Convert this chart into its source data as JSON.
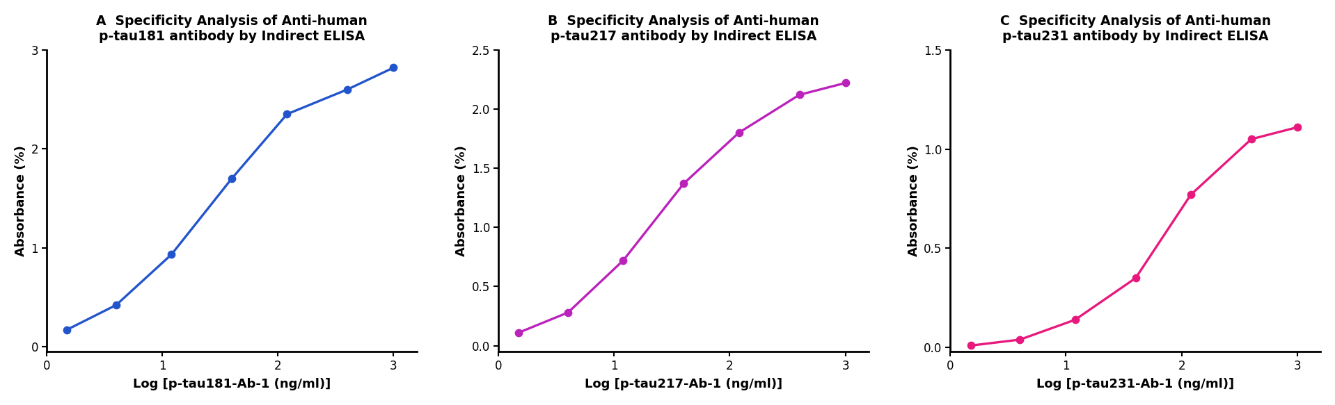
{
  "panels": [
    {
      "title": "A  Specificity Analysis of Anti-human\np-tau181 antibody by Indirect ELISA",
      "xlabel": "Log [p-tau181-Ab-1 (ng/ml)]",
      "ylabel": "Absorbance (%)",
      "color": "#2255cc",
      "x_data": [
        0.176,
        0.602,
        1.079,
        1.602,
        2.079,
        2.602,
        3.0
      ],
      "y_data": [
        0.17,
        0.42,
        0.93,
        1.7,
        2.35,
        2.6,
        2.82
      ],
      "xlim": [
        0,
        3.2
      ],
      "ylim": [
        -0.05,
        3.0
      ],
      "yticks": [
        0,
        1,
        2,
        3
      ],
      "ytick_labels": [
        "0",
        "1",
        "2",
        "3"
      ],
      "xticks": [
        0,
        1,
        2,
        3
      ]
    },
    {
      "title": "B  Specificity Analysis of Anti-human\np-tau217 antibody by Indirect ELISA",
      "xlabel": "Log [p-tau217-Ab-1 (ng/ml)]",
      "ylabel": "Absorbance (%)",
      "color": "#bb22bb",
      "x_data": [
        0.176,
        0.602,
        1.079,
        1.602,
        2.079,
        2.602,
        3.0
      ],
      "y_data": [
        0.11,
        0.28,
        0.72,
        1.37,
        1.8,
        2.12,
        2.22
      ],
      "xlim": [
        0,
        3.2
      ],
      "ylim": [
        -0.05,
        2.5
      ],
      "yticks": [
        0.0,
        0.5,
        1.0,
        1.5,
        2.0,
        2.5
      ],
      "ytick_labels": [
        "0.0",
        "0.5",
        "1.0",
        "1.5",
        "2.0",
        "2.5"
      ],
      "xticks": [
        0,
        1,
        2,
        3
      ]
    },
    {
      "title": "C  Specificity Analysis of Anti-human\np-tau231 antibody by Indirect ELISA",
      "xlabel": "Log [p-tau231-Ab-1 (ng/ml)]",
      "ylabel": "Absorbance (%)",
      "color": "#e8197d",
      "x_data": [
        0.176,
        0.602,
        1.079,
        1.602,
        2.079,
        2.602,
        3.0
      ],
      "y_data": [
        0.01,
        0.04,
        0.14,
        0.35,
        0.77,
        1.05,
        1.11
      ],
      "xlim": [
        0,
        3.2
      ],
      "ylim": [
        -0.02,
        1.5
      ],
      "yticks": [
        0.0,
        0.5,
        1.0,
        1.5
      ],
      "ytick_labels": [
        "0.0",
        "0.5",
        "1.0",
        "1.5"
      ],
      "xticks": [
        0,
        1,
        2,
        3
      ]
    }
  ],
  "background_color": "#ffffff",
  "title_fontsize": 13.5,
  "label_fontsize": 13,
  "tick_fontsize": 12,
  "marker_size": 72,
  "line_width": 2.4
}
